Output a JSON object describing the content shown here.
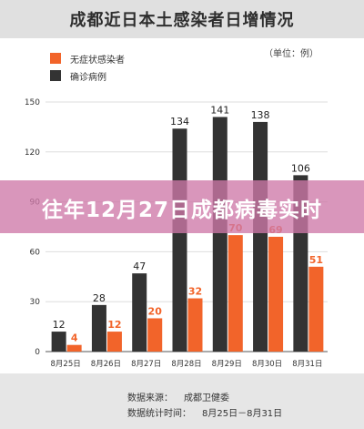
{
  "chart_data": {
    "type": "bar",
    "title": "成都近日本土感染者日增情况",
    "unit": "（单位：例）",
    "categories": [
      "8月25日",
      "8月26日",
      "8月27日",
      "8月28日",
      "8月29日",
      "8月30日",
      "8月31日"
    ],
    "series": [
      {
        "name": "确诊病例",
        "color": "#333333",
        "values": [
          12,
          28,
          47,
          134,
          141,
          138,
          106
        ]
      },
      {
        "name": "无症状感染者",
        "color": "#f2642a",
        "values": [
          4,
          12,
          20,
          32,
          70,
          69,
          51
        ]
      }
    ],
    "ylim": [
      0,
      150
    ],
    "yticks": [
      0,
      30,
      60,
      90,
      120,
      150
    ],
    "grid": true,
    "legend_position": "top-left"
  },
  "banner": {
    "text": "往年12月27日成都病毒实时"
  },
  "footer": {
    "source_label": "数据来源：",
    "source_value": "成都卫健委",
    "period_label": "数据统计时间：",
    "period_value": "8月25日－8月31日"
  }
}
